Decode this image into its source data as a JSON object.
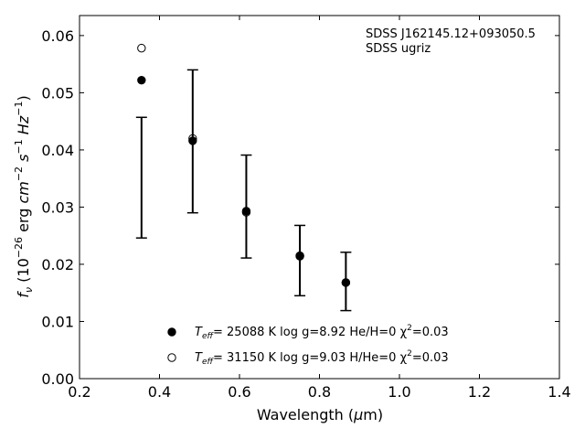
{
  "chart_data": {
    "type": "scatter",
    "x_label": "Wavelength (μm)",
    "y_label": "fν (10⁻²⁶ erg cm⁻² s⁻¹ Hz⁻¹)",
    "xlim": [
      0.2,
      1.4
    ],
    "ylim": [
      0.0,
      0.0635
    ],
    "x_ticks": [
      0.2,
      0.4,
      0.6,
      0.8,
      1.0,
      1.2,
      1.4
    ],
    "x_tick_labels": [
      "0.2",
      "0.4",
      "0.6",
      "0.8",
      "1.0",
      "1.2",
      "1.4"
    ],
    "y_ticks": [
      0.0,
      0.01,
      0.02,
      0.03,
      0.04,
      0.05,
      0.06
    ],
    "y_tick_labels": [
      "0.00",
      "0.01",
      "0.02",
      "0.03",
      "0.04",
      "0.05",
      "0.06"
    ],
    "grid": false,
    "legend_placement": "bottom-center",
    "annotations": [
      "SDSS J162145.12+093050.5",
      "SDSS ugriz"
    ],
    "observed": {
      "x": [
        0.355,
        0.483,
        0.617,
        0.751,
        0.866
      ],
      "y_low": [
        0.0246,
        0.029,
        0.0211,
        0.0145,
        0.0119
      ],
      "y_high": [
        0.0457,
        0.054,
        0.0391,
        0.0268,
        0.0221
      ]
    },
    "series": [
      {
        "name": "Teff= 25088 K  log g=8.92  He/H=0  χ²=0.03",
        "marker": "filled-circle",
        "x": [
          0.355,
          0.483,
          0.617,
          0.751,
          0.866
        ],
        "y": [
          0.0522,
          0.0416,
          0.0293,
          0.0214,
          0.0168
        ]
      },
      {
        "name": "Teff= 31150 K  log g=9.03  H/He=0  χ²=0.03",
        "marker": "open-circle",
        "x": [
          0.355,
          0.483,
          0.617,
          0.751,
          0.866
        ],
        "y": [
          0.0578,
          0.042,
          0.0291,
          0.0215,
          0.0168
        ]
      }
    ],
    "legend": [
      {
        "teff_label": "T",
        "teff_sub": "eff",
        "rest": "= 25088 K  log g=8.92  He/H=0  χ",
        "sup": "2",
        "tail": "=0.03"
      },
      {
        "teff_label": "T",
        "teff_sub": "eff",
        "rest": "= 31150 K  log g=9.03  H/He=0  χ",
        "sup": "2",
        "tail": "=0.03"
      }
    ]
  }
}
